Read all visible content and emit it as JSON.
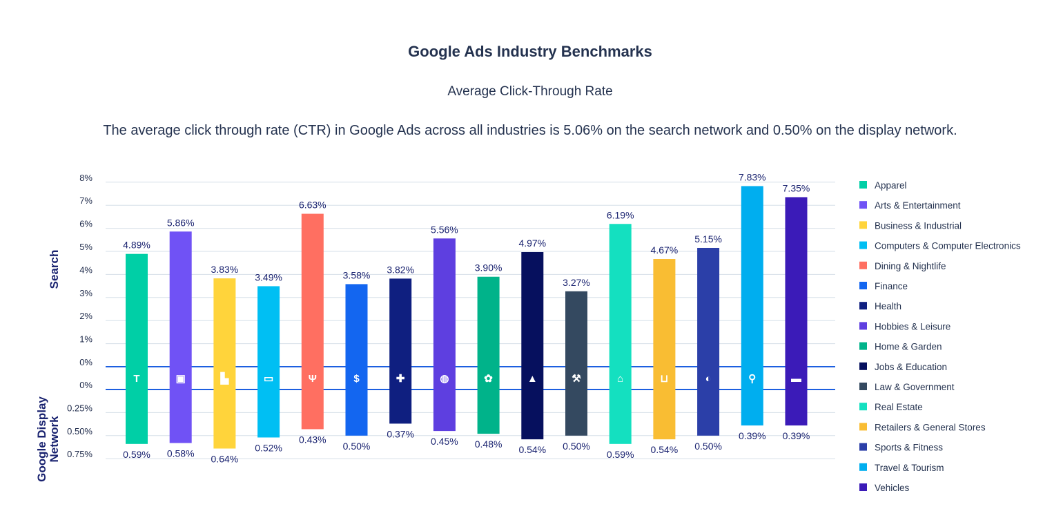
{
  "chart_data": {
    "type": "bar",
    "title": "Google Ads Industry Benchmarks",
    "subtitle": "Average Click-Through Rate",
    "description": "The average click through rate (CTR) in Google Ads across all industries is 5.06% on the search network and 0.50% on the display network.",
    "axes": {
      "search_label": "Search",
      "display_label": "Google Display Network",
      "search_ticks": [
        "8%",
        "7%",
        "6%",
        "5%",
        "4%",
        "3%",
        "2%",
        "1%",
        "0%"
      ],
      "display_ticks": [
        "0%",
        "0.25%",
        "0.50%",
        "0.75%"
      ],
      "search_ylim": [
        0,
        8
      ],
      "display_ylim": [
        0,
        0.75
      ],
      "grid": true
    },
    "legend_position": "right",
    "categories": [
      "Apparel",
      "Arts & Entertainment",
      "Business & Industrial",
      "Computers & Computer Electronics",
      "Dining & Nightlife",
      "Finance",
      "Health",
      "Hobbies & Leisure",
      "Home & Garden",
      "Jobs & Education",
      "Law & Government",
      "Real Estate",
      "Retailers & General Stores",
      "Sports & Fitness",
      "Travel & Tourism",
      "Vehicles"
    ],
    "colors": [
      "#00cfa6",
      "#7052f5",
      "#ffd43b",
      "#00bff3",
      "#ff6f61",
      "#1366f0",
      "#0f1f80",
      "#5e3fe0",
      "#00b38a",
      "#06105e",
      "#344960",
      "#14e0c0",
      "#f9bd33",
      "#2b3fa8",
      "#00aeef",
      "#3b1bb8"
    ],
    "icons": [
      "shirt-icon",
      "pictures-icon",
      "factory-icon",
      "laptop-icon",
      "fork-knife-icon",
      "money-bag-icon",
      "first-aid-icon",
      "yarn-ball-icon",
      "flower-icon",
      "graduation-cap-icon",
      "gavel-icon",
      "house-icon",
      "cart-icon",
      "ball-icon",
      "map-pin-icon",
      "car-icon"
    ],
    "series": [
      {
        "name": "Search",
        "values": [
          4.89,
          5.86,
          3.83,
          3.49,
          6.63,
          3.58,
          3.82,
          5.56,
          3.9,
          4.97,
          3.27,
          6.19,
          4.67,
          5.15,
          7.83,
          7.35
        ],
        "labels": [
          "4.89%",
          "5.86%",
          "3.83%",
          "3.49%",
          "6.63%",
          "3.58%",
          "3.82%",
          "5.56%",
          "3.90%",
          "4.97%",
          "3.27%",
          "6.19%",
          "4.67%",
          "5.15%",
          "7.83%",
          "7.35%"
        ]
      },
      {
        "name": "Google Display Network",
        "values": [
          0.59,
          0.58,
          0.64,
          0.52,
          0.43,
          0.5,
          0.37,
          0.45,
          0.48,
          0.54,
          0.5,
          0.59,
          0.54,
          0.5,
          0.39,
          0.39
        ],
        "labels": [
          "0.59%",
          "0.58%",
          "0.64%",
          "0.52%",
          "0.43%",
          "0.50%",
          "0.37%",
          "0.45%",
          "0.48%",
          "0.54%",
          "0.50%",
          "0.59%",
          "0.54%",
          "0.50%",
          "0.39%",
          "0.39%"
        ]
      }
    ]
  }
}
